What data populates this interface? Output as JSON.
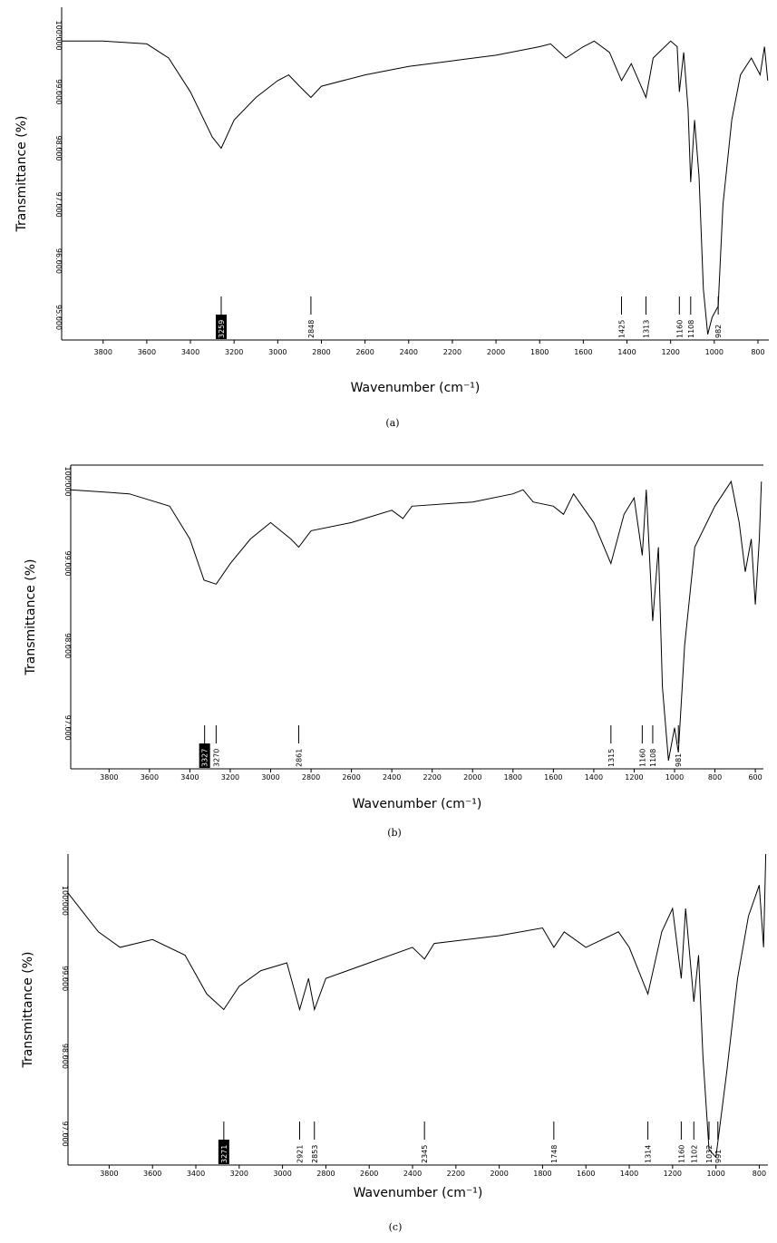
{
  "chart_data": [
    {
      "type": "line",
      "caption": "(a)",
      "x_label": "Wavenumber (cm⁻¹)",
      "y_label": "Transmittance (%)",
      "color": "#000000",
      "xlim": [
        3990,
        750
      ],
      "xticks": [
        3800,
        3600,
        3400,
        3200,
        3000,
        2800,
        2600,
        2400,
        2200,
        2000,
        1800,
        1600,
        1400,
        1200,
        1000,
        800
      ],
      "ylim": [
        94.6,
        100.5
      ],
      "yticks": [
        {
          "value": 100,
          "label": "100.000"
        },
        {
          "value": 99,
          "label": "99.000"
        },
        {
          "value": 98,
          "label": "98.000"
        },
        {
          "value": 97,
          "label": "97.000"
        },
        {
          "value": 96,
          "label": "96.000"
        },
        {
          "value": 95,
          "label": "95.000"
        }
      ],
      "x": [
        3990,
        3800,
        3600,
        3500,
        3400,
        3300,
        3259,
        3200,
        3100,
        3000,
        2950,
        2900,
        2848,
        2800,
        2600,
        2400,
        2200,
        2000,
        1800,
        1750,
        1680,
        1600,
        1550,
        1480,
        1425,
        1380,
        1313,
        1280,
        1200,
        1170,
        1160,
        1140,
        1120,
        1108,
        1090,
        1070,
        1050,
        1030,
        1010,
        982,
        960,
        920,
        880,
        830,
        790,
        770,
        755
      ],
      "values": [
        99.9,
        99.9,
        99.85,
        99.6,
        99.0,
        98.2,
        98.0,
        98.5,
        98.9,
        99.2,
        99.3,
        99.1,
        98.9,
        99.1,
        99.3,
        99.45,
        99.55,
        99.65,
        99.8,
        99.85,
        99.6,
        99.8,
        99.9,
        99.7,
        99.2,
        99.5,
        98.9,
        99.6,
        99.9,
        99.8,
        99.0,
        99.7,
        98.7,
        97.4,
        98.5,
        97.5,
        95.5,
        94.7,
        95.0,
        95.2,
        97.0,
        98.5,
        99.3,
        99.6,
        99.3,
        99.8,
        99.2
      ],
      "peaks": [
        3259,
        2848,
        1425,
        1313,
        1160,
        1108,
        982
      ]
    },
    {
      "type": "line",
      "caption": "(b)",
      "x_label": "Wavenumber (cm⁻¹)",
      "y_label": "Transmittance (%)",
      "color": "#000000",
      "xlim": [
        3990,
        560
      ],
      "xticks": [
        3800,
        3600,
        3400,
        3200,
        3000,
        2800,
        2600,
        2400,
        2200,
        2000,
        1800,
        1600,
        1400,
        1200,
        1000,
        800,
        600
      ],
      "ylim": [
        96.5,
        100.2
      ],
      "yticks": [
        {
          "value": 100,
          "label": "100.000"
        },
        {
          "value": 99,
          "label": "99.000"
        },
        {
          "value": 98,
          "label": "98.000"
        },
        {
          "value": 97,
          "label": "97.000"
        }
      ],
      "x": [
        3990,
        3700,
        3500,
        3400,
        3330,
        3270,
        3200,
        3100,
        3000,
        2900,
        2861,
        2800,
        2600,
        2400,
        2345,
        2300,
        2000,
        1800,
        1750,
        1700,
        1600,
        1550,
        1500,
        1400,
        1315,
        1250,
        1200,
        1160,
        1140,
        1108,
        1080,
        1060,
        1030,
        1000,
        981,
        950,
        900,
        800,
        720,
        680,
        650,
        620,
        600,
        580,
        570
      ],
      "values": [
        99.9,
        99.85,
        99.7,
        99.3,
        98.8,
        98.75,
        99.0,
        99.3,
        99.5,
        99.3,
        99.2,
        99.4,
        99.5,
        99.65,
        99.55,
        99.7,
        99.75,
        99.85,
        99.9,
        99.75,
        99.7,
        99.6,
        99.85,
        99.5,
        99.0,
        99.6,
        99.8,
        99.1,
        99.9,
        98.3,
        99.2,
        97.5,
        96.6,
        97.0,
        96.7,
        98.0,
        99.2,
        99.7,
        100.0,
        99.5,
        98.9,
        99.3,
        98.5,
        99.3,
        100.0
      ],
      "peaks": [
        3327,
        3270,
        2861,
        1315,
        1160,
        1108,
        981
      ]
    },
    {
      "type": "line",
      "caption": "(c)",
      "x_label": "Wavenumber (cm⁻¹)",
      "y_label": "Transmittance (%)",
      "color": "#000000",
      "xlim": [
        3990,
        760
      ],
      "xticks": [
        3800,
        3600,
        3400,
        3200,
        3000,
        2800,
        2600,
        2400,
        2200,
        2000,
        1800,
        1600,
        1400,
        1200,
        1000,
        800
      ],
      "ylim": [
        96.6,
        100.6
      ],
      "yticks": [
        {
          "value": 100,
          "label": "100.000"
        },
        {
          "value": 99,
          "label": "99.000"
        },
        {
          "value": 98,
          "label": "98.000"
        },
        {
          "value": 97,
          "label": "97.000"
        }
      ],
      "x": [
        3990,
        3850,
        3750,
        3600,
        3450,
        3350,
        3271,
        3200,
        3100,
        2980,
        2921,
        2880,
        2853,
        2800,
        2600,
        2400,
        2345,
        2300,
        2000,
        1800,
        1748,
        1700,
        1600,
        1450,
        1400,
        1314,
        1250,
        1200,
        1160,
        1140,
        1102,
        1080,
        1060,
        1032,
        1000,
        991,
        950,
        900,
        850,
        800,
        780,
        770
      ],
      "values": [
        100.1,
        99.6,
        99.4,
        99.5,
        99.3,
        98.8,
        98.6,
        98.9,
        99.1,
        99.2,
        98.6,
        99.0,
        98.6,
        99.0,
        99.2,
        99.4,
        99.25,
        99.45,
        99.55,
        99.65,
        99.4,
        99.6,
        99.4,
        99.6,
        99.4,
        98.8,
        99.6,
        99.9,
        99.0,
        99.9,
        98.7,
        99.3,
        98.0,
        96.8,
        96.7,
        96.9,
        97.8,
        99.0,
        99.8,
        100.2,
        99.4,
        100.6
      ],
      "peaks": [
        3271,
        2921,
        2853,
        2345,
        1748,
        1314,
        1160,
        1102,
        1032,
        991
      ]
    }
  ]
}
